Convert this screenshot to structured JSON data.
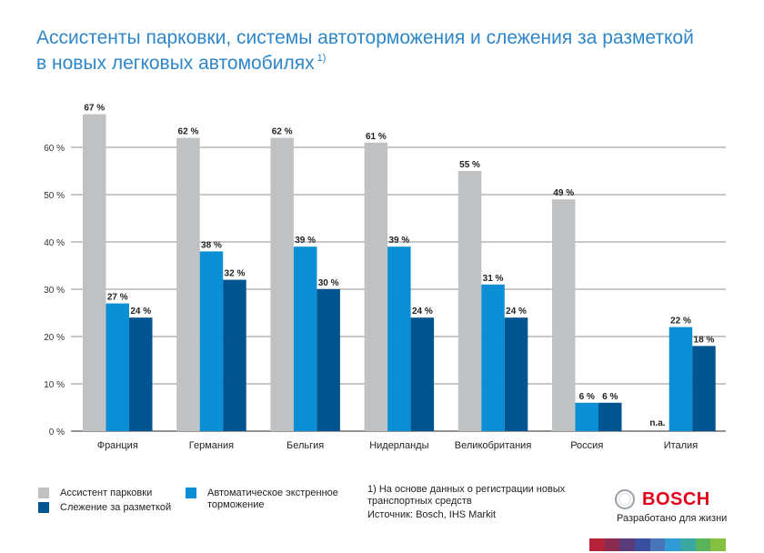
{
  "title": {
    "line1": "Ассистенты парковки, системы автоторможения и слежения за разметкой",
    "line2": "в новых легковых автомобилях",
    "footnote_marker": "1)"
  },
  "chart_data": {
    "type": "bar",
    "categories": [
      "Франция",
      "Германия",
      "Бельгия",
      "Нидерланды",
      "Великобритания",
      "Россия",
      "Италия"
    ],
    "series": [
      {
        "name": "Ассистент парковки",
        "color": "#c0c1c2",
        "values": [
          67,
          62,
          62,
          61,
          55,
          49,
          null
        ],
        "labels": [
          "67 %",
          "62 %",
          "62 %",
          "61 %",
          "55 %",
          "49 %",
          "n.a."
        ]
      },
      {
        "name": "Автоматическое экстренное торможение",
        "color": "#0a8fd4",
        "values": [
          27,
          38,
          39,
          39,
          31,
          6,
          22
        ],
        "labels": [
          "27 %",
          "38 %",
          "39 %",
          "39 %",
          "31 %",
          "6 %",
          "22 %"
        ]
      },
      {
        "name": "Слежение за разметкой",
        "color": "#00548f",
        "values": [
          24,
          32,
          30,
          24,
          24,
          6,
          18
        ],
        "labels": [
          "24 %",
          "32 %",
          "30 %",
          "24 %",
          "24 %",
          "6 %",
          "18 %"
        ]
      }
    ],
    "ylim": [
      0,
      70
    ],
    "yticks": [
      0,
      10,
      20,
      30,
      40,
      50,
      60
    ],
    "ytick_labels": [
      "0 %",
      "10 %",
      "20 %",
      "30 %",
      "40 %",
      "50 %",
      "60 %"
    ],
    "grid": true,
    "legend": "bottom-left"
  },
  "legend": {
    "items": [
      {
        "label": "Ассистент парковки",
        "color": "#c0c1c2"
      },
      {
        "label": "Слежение за разметкой",
        "color": "#00548f"
      },
      {
        "label_line1": "Автоматическое экстренное",
        "label_line2": "торможение",
        "color": "#0a8fd4"
      }
    ]
  },
  "notes": {
    "footnote_line1": "1) На основе данных о регистрации новых",
    "footnote_line2": "транспортных средств",
    "source": "Источник: Bosch, IHS Markit"
  },
  "brand": {
    "name": "BOSCH",
    "tagline": "Разработано для жизни",
    "color": "#e2001a"
  }
}
